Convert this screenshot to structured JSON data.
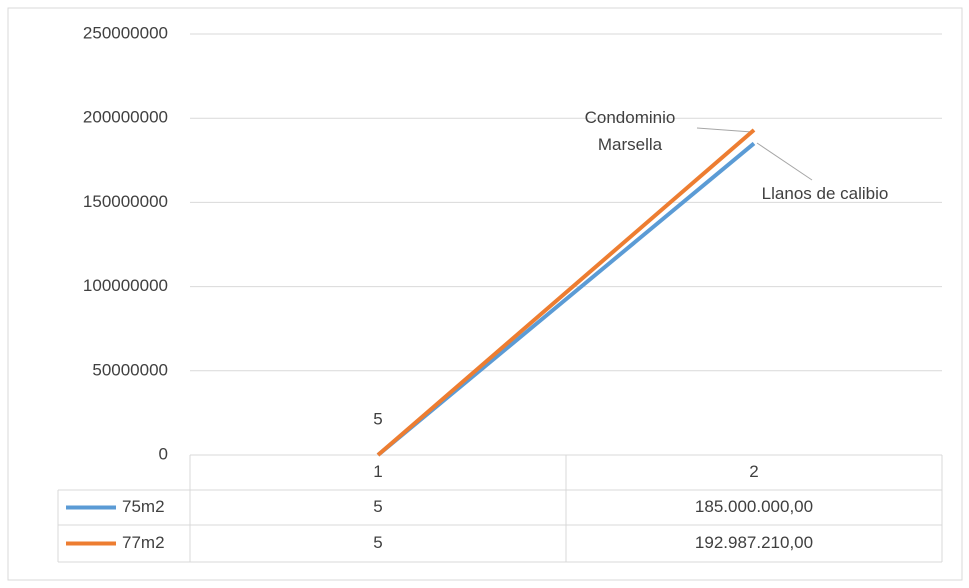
{
  "chart_data": {
    "type": "line",
    "categories": [
      "1",
      "2"
    ],
    "series": [
      {
        "name": "75m2",
        "color": "#5b9bd5",
        "values": [
          5,
          185000000
        ],
        "value_labels": [
          "5",
          "185.000.000,00"
        ]
      },
      {
        "name": "77m2",
        "color": "#ed7d31",
        "values": [
          5,
          192987210
        ],
        "value_labels": [
          "5",
          "192.987.210,00"
        ]
      }
    ],
    "ylim": [
      0,
      250000000
    ],
    "yticks": [
      0,
      50000000,
      100000000,
      150000000,
      200000000,
      250000000
    ],
    "grid": true,
    "annotations": [
      "Condominio Marsella",
      "Llanos de calibio"
    ]
  }
}
